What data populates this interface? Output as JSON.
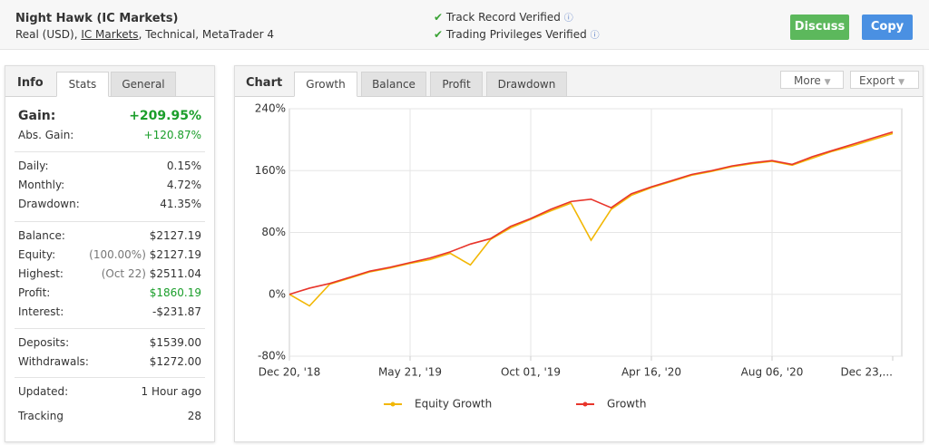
{
  "header": {
    "title": "Night Hawk (IC Markets)",
    "subtitle": [
      "Real (USD), ",
      "IC Markets",
      ", Technical, MetaTrader 4"
    ],
    "verified": [
      "Track Record Verified",
      "Trading Privileges Verified"
    ],
    "buttons": [
      "Discuss",
      "Copy"
    ]
  },
  "info": {
    "tabs": [
      "Info",
      "Stats",
      "General"
    ],
    "groups": [
      [
        {
          "label": "Gain:",
          "value": "+209.95%",
          "color": "#1a9e2a"
        },
        {
          "label": "Abs. Gain:",
          "value": "+120.87%",
          "color": "#1a9e2a"
        }
      ],
      [
        {
          "label": "Daily:",
          "value": "0.15%"
        },
        {
          "label": "Monthly:",
          "value": "4.72%"
        },
        {
          "label": "Drawdown:",
          "value": "41.35%"
        }
      ],
      [
        {
          "label": "Balance:",
          "value": "$2127.19"
        },
        {
          "label": "Equity:",
          "note": "(100.00%)",
          "value": "$2127.19"
        },
        {
          "label": "Highest:",
          "note": "(Oct 22)",
          "value": "$2511.04"
        },
        {
          "label": "Profit:",
          "value": "$1860.19",
          "color": "#1a9e2a"
        },
        {
          "label": "Interest:",
          "value": "-$231.87"
        }
      ],
      [
        {
          "label": "Deposits:",
          "value": "$1539.00"
        },
        {
          "label": "Withdrawals:",
          "value": "$1272.00"
        }
      ],
      [
        {
          "label": "Updated:",
          "value": "1 Hour ago"
        },
        {
          "label": "Tracking",
          "value": "28"
        }
      ]
    ]
  },
  "chart_panel": {
    "title": "Chart",
    "tabs": [
      "Growth",
      "Balance",
      "Profit",
      "Drawdown"
    ],
    "menus": [
      "More",
      "Export"
    ]
  },
  "chart_data": {
    "type": "line",
    "categories": [
      "Dec 20, '18",
      null,
      null,
      null,
      null,
      null,
      "May 21, '19",
      null,
      null,
      null,
      null,
      null,
      "Oct 01, '19",
      null,
      null,
      null,
      null,
      null,
      "Apr 16, '20",
      null,
      null,
      null,
      null,
      null,
      "Aug 06, '20",
      null,
      null,
      null,
      null,
      null,
      "Dec 23,..."
    ],
    "series": [
      {
        "name": "Equity Growth",
        "color": "#f2b705",
        "values": [
          0,
          -15,
          13,
          21,
          29,
          34,
          40,
          45,
          53,
          38,
          71,
          86,
          97,
          108,
          118,
          70,
          110,
          128,
          138,
          146,
          154,
          159,
          165,
          169,
          172,
          167,
          176,
          185,
          192,
          200,
          208
        ]
      },
      {
        "name": "Growth",
        "color": "#e8352b",
        "values": [
          0,
          8,
          14,
          22,
          30,
          35,
          41,
          47,
          55,
          65,
          72,
          88,
          98,
          110,
          120,
          123,
          112,
          130,
          139,
          147,
          155,
          160,
          166,
          170,
          173,
          168,
          178,
          186,
          194,
          202,
          210
        ]
      }
    ],
    "ylim": [
      -80,
      240
    ],
    "yticks": [
      {
        "value": -80,
        "label": "-80%"
      },
      {
        "value": 0,
        "label": "0%"
      },
      {
        "value": 80,
        "label": "80%"
      },
      {
        "value": 160,
        "label": "160%"
      },
      {
        "value": 240,
        "label": "240%"
      }
    ],
    "grid": true
  }
}
